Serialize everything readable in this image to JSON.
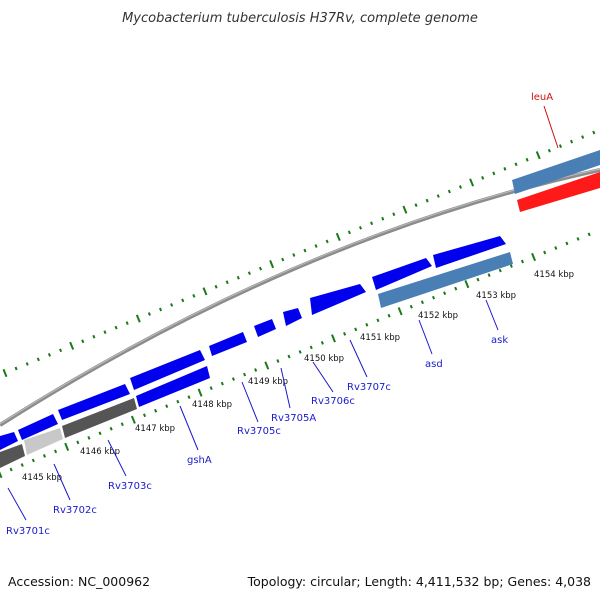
{
  "title": "Mycobacterium tuberculosis H37Rv, complete genome",
  "footer": {
    "accession": "Accession: NC_000962",
    "topology": "Topology: circular; Length: 4,411,532 bp; Genes: 4,038"
  },
  "colors": {
    "forward_gene": "#0000ee",
    "highlight_gene": "#ff1a1a",
    "steelblue_gene": "#4a7fb5",
    "dark_gray_gene": "#555555",
    "light_gray_gene": "#c8c8c8",
    "backbone": "#8c8c8c",
    "ticks": "#1a7a1a",
    "gene_label": "#1a1acc",
    "highlight_label": "#cc1111"
  },
  "kbp_labels": [
    "4145 kbp",
    "4146 kbp",
    "4147 kbp",
    "4148 kbp",
    "4149 kbp",
    "4150 kbp",
    "4151 kbp",
    "4152 kbp",
    "4153 kbp",
    "4154 kbp"
  ],
  "gene_labels": [
    {
      "name": "Rv3701c",
      "color": "blue"
    },
    {
      "name": "Rv3702c",
      "color": "blue"
    },
    {
      "name": "Rv3703c",
      "color": "blue"
    },
    {
      "name": "gshA",
      "color": "blue"
    },
    {
      "name": "Rv3705c",
      "color": "blue"
    },
    {
      "name": "Rv3705A",
      "color": "blue"
    },
    {
      "name": "Rv3706c",
      "color": "blue"
    },
    {
      "name": "Rv3707c",
      "color": "blue"
    },
    {
      "name": "asd",
      "color": "blue"
    },
    {
      "name": "ask",
      "color": "blue"
    },
    {
      "name": "leuA",
      "color": "red"
    }
  ]
}
